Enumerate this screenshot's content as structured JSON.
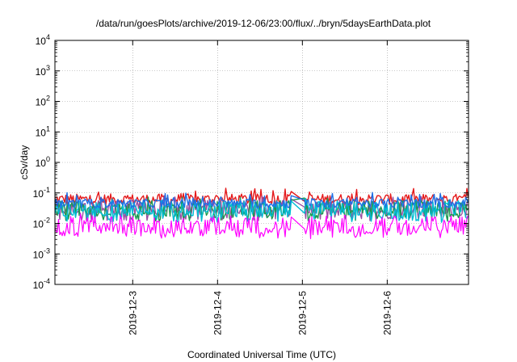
{
  "chart_data": {
    "type": "line",
    "title": "/data/run/goesPlots/archive/2019-12-06/23:00/flux/../bryn/5daysEarthData.plot",
    "xlabel": "Coordinated Universal Time (UTC)",
    "ylabel": "cSv/day",
    "y_scale": "log",
    "ylim": [
      0.0001,
      10000
    ],
    "y_ticks": [
      {
        "value": 0.0001,
        "base": "10",
        "exp": "-4"
      },
      {
        "value": 0.001,
        "base": "10",
        "exp": "-3"
      },
      {
        "value": 0.01,
        "base": "10",
        "exp": "-2"
      },
      {
        "value": 0.1,
        "base": "10",
        "exp": "-1"
      },
      {
        "value": 1,
        "base": "10",
        "exp": "0"
      },
      {
        "value": 10,
        "base": "10",
        "exp": "1"
      },
      {
        "value": 100,
        "base": "10",
        "exp": "2"
      },
      {
        "value": 1000,
        "base": "10",
        "exp": "3"
      },
      {
        "value": 10000,
        "base": "10",
        "exp": "4"
      }
    ],
    "x_range_days": [
      "2019-12-02 02:00",
      "2019-12-06 23:00"
    ],
    "xlim": [
      "2019-12-02T02:00",
      "2019-12-06T23:00"
    ],
    "x_ticks": [
      "2019-12-3",
      "2019-12-4",
      "2019-12-5",
      "2019-12-6"
    ],
    "x_tick_dates": [
      "2019-12-03T00:00",
      "2019-12-04T00:00",
      "2019-12-05T00:00",
      "2019-12-06T00:00"
    ],
    "data_gap": [
      "2019-12-04T21:00",
      "2019-12-05T00:30"
    ],
    "grid": true,
    "series": [
      {
        "color": "#e41a1c",
        "base": 0.062,
        "spread": 0.35,
        "spike": 0.12
      },
      {
        "color": "#984ea3",
        "base": 0.035,
        "spread": 0.45,
        "spike": 0.05
      },
      {
        "color": "#1a9850",
        "base": 0.032,
        "spread": 0.5,
        "spike": 0.05
      },
      {
        "color": "#00bcd4",
        "base": 0.03,
        "spread": 0.5,
        "spike": 0.05
      },
      {
        "color": "#1f6fe5",
        "base": 0.045,
        "spread": 0.3,
        "spike": 0.08
      },
      {
        "color": "#ff00ff",
        "base": 0.009,
        "spread": 0.6,
        "spike": 0.03
      }
    ]
  }
}
